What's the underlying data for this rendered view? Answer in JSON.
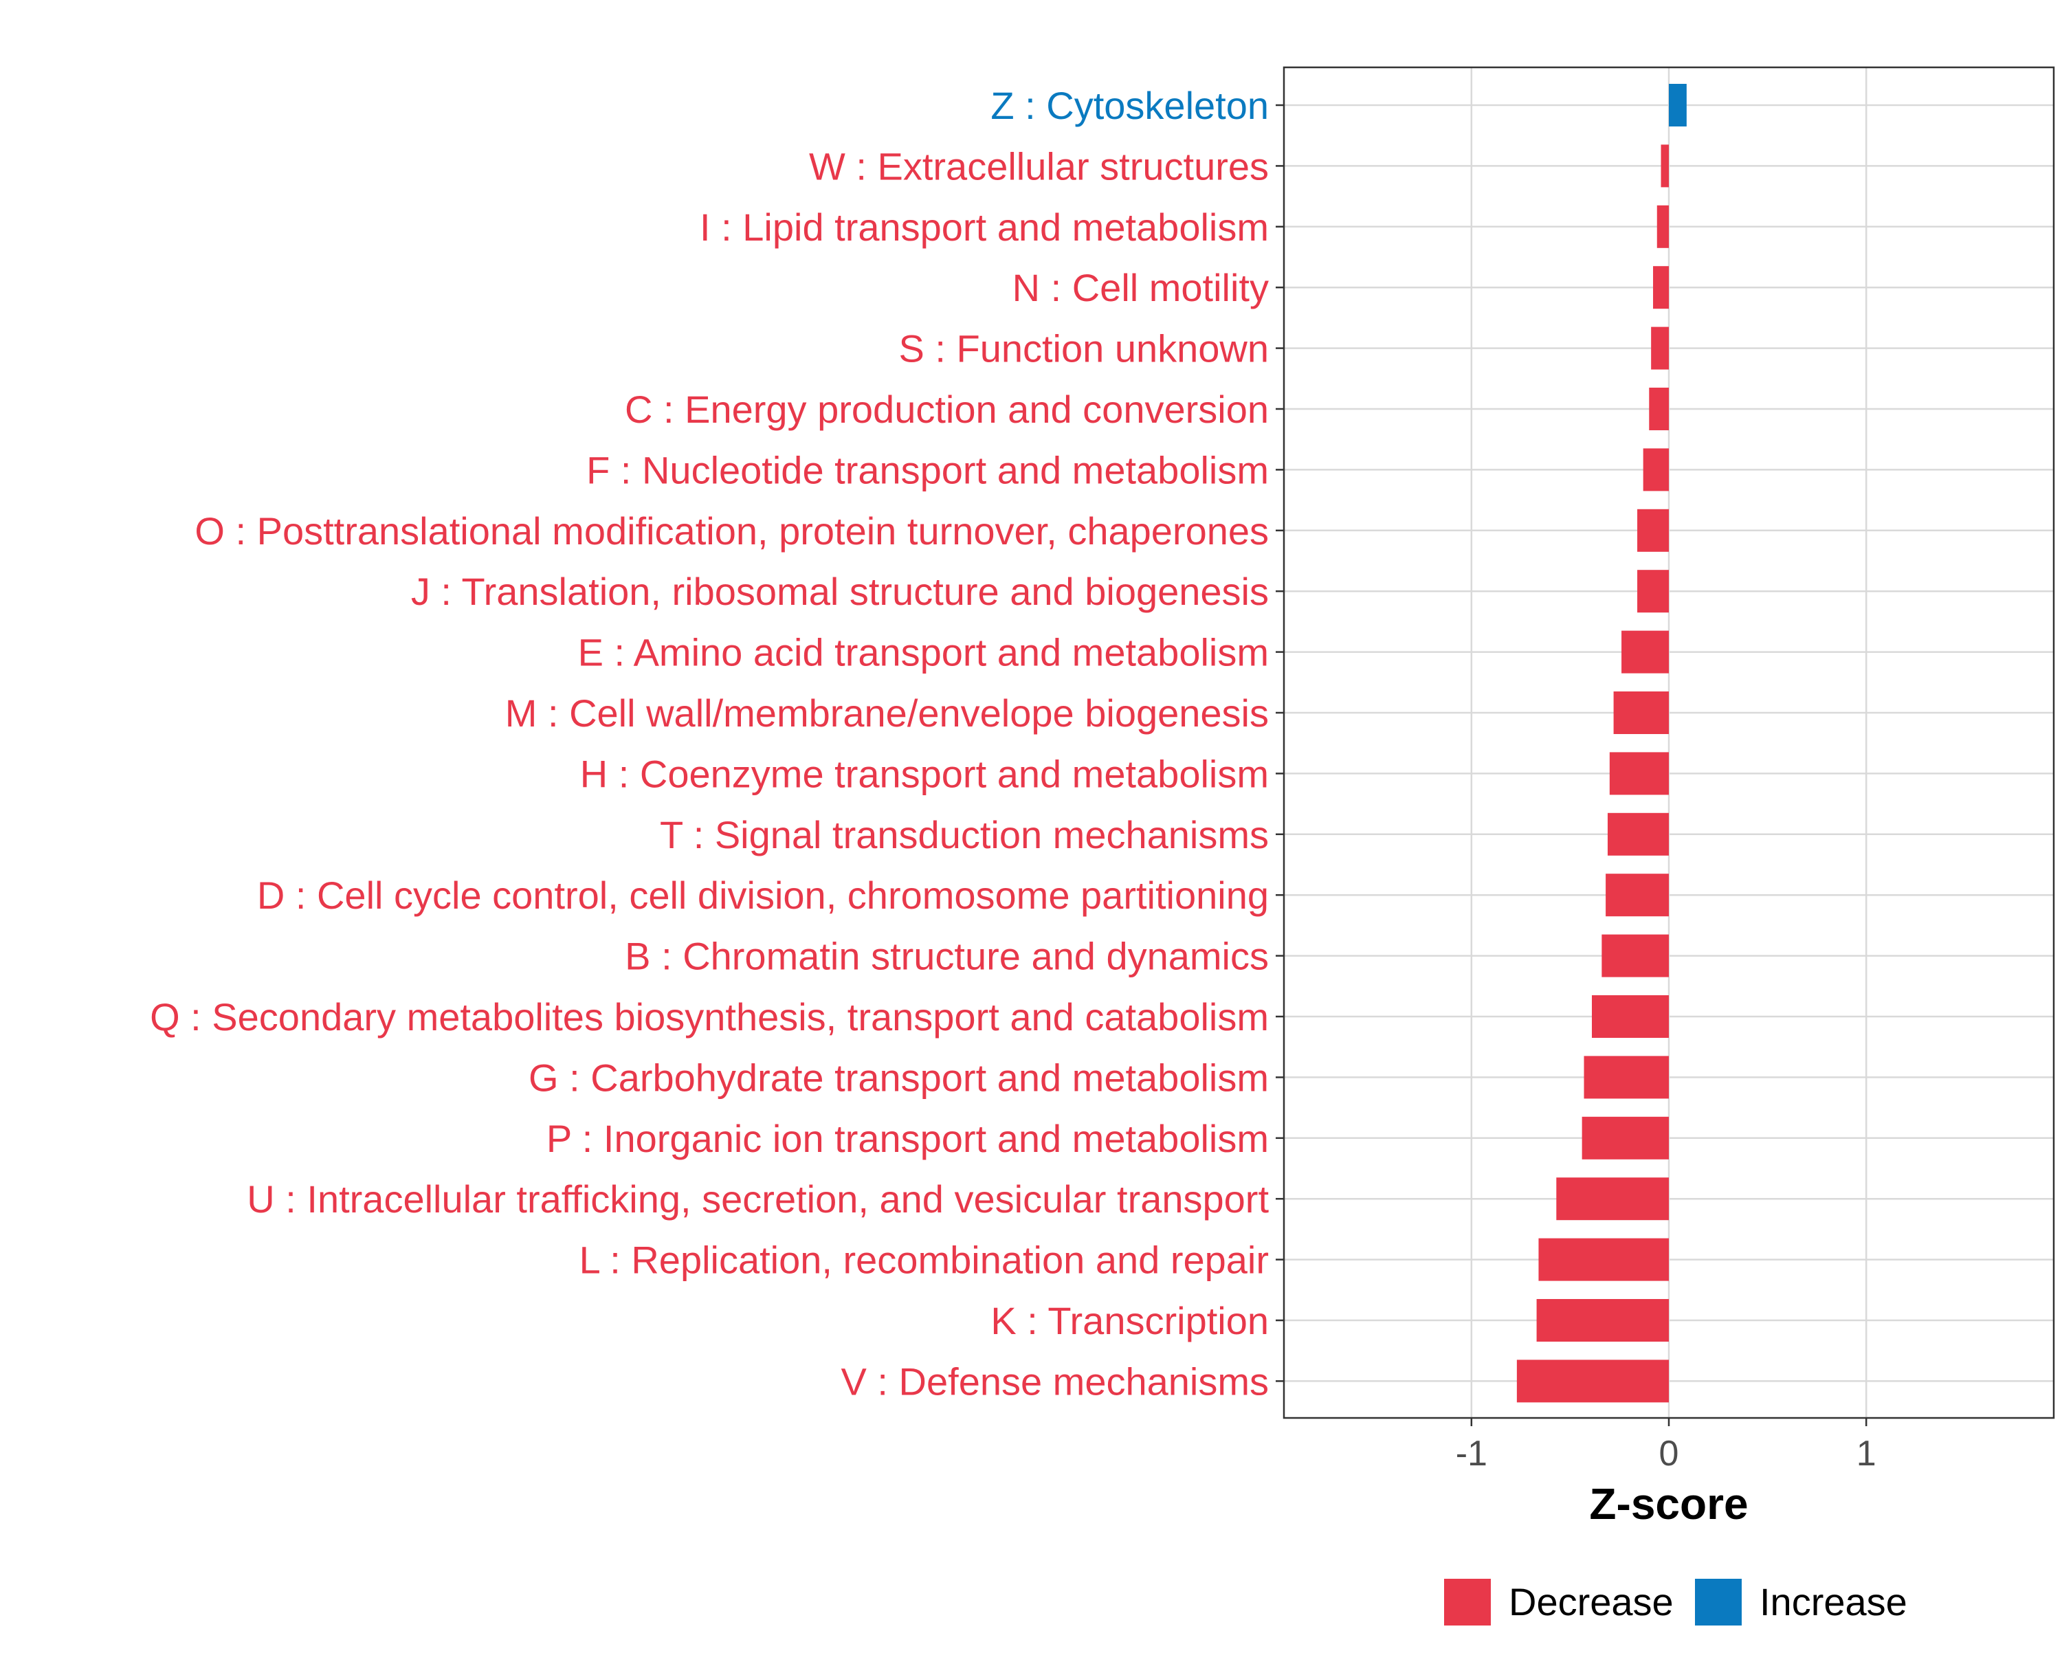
{
  "chart_data": {
    "type": "bar",
    "orientation": "horizontal",
    "categories": [
      "Z : Cytoskeleton",
      "W : Extracellular structures",
      "I : Lipid transport and metabolism",
      "N : Cell motility",
      "S : Function unknown",
      "C : Energy production and conversion",
      "F : Nucleotide transport and metabolism",
      "O : Posttranslational modification, protein turnover, chaperones",
      "J : Translation, ribosomal structure and biogenesis",
      "E : Amino acid transport and metabolism",
      "M : Cell wall/membrane/envelope biogenesis",
      "H : Coenzyme transport and metabolism",
      "T : Signal transduction mechanisms",
      "D : Cell cycle control, cell division, chromosome partitioning",
      "B : Chromatin structure and dynamics",
      "Q : Secondary metabolites biosynthesis, transport and catabolism",
      "G : Carbohydrate transport and metabolism",
      "P : Inorganic ion transport and metabolism",
      "U : Intracellular trafficking, secretion, and vesicular transport",
      "L : Replication, recombination and repair",
      "K : Transcription",
      "V : Defense mechanisms"
    ],
    "values": [
      0.09,
      -0.04,
      -0.06,
      -0.08,
      -0.09,
      -0.1,
      -0.13,
      -0.16,
      -0.16,
      -0.24,
      -0.28,
      -0.3,
      -0.31,
      -0.32,
      -0.34,
      -0.39,
      -0.43,
      -0.44,
      -0.57,
      -0.66,
      -0.67,
      -0.77
    ],
    "groups": [
      "Increase",
      "Decrease",
      "Decrease",
      "Decrease",
      "Decrease",
      "Decrease",
      "Decrease",
      "Decrease",
      "Decrease",
      "Decrease",
      "Decrease",
      "Decrease",
      "Decrease",
      "Decrease",
      "Decrease",
      "Decrease",
      "Decrease",
      "Decrease",
      "Decrease",
      "Decrease",
      "Decrease",
      "Decrease"
    ],
    "xlabel": "Z-score",
    "ylabel": "",
    "xlim": [
      -1.95,
      1.95
    ],
    "xticks": [
      -1,
      0,
      1
    ],
    "xtick_labels": [
      "-1",
      "0",
      "1"
    ],
    "grid": true,
    "legend": {
      "position": "bottom",
      "entries": [
        {
          "label": "Decrease",
          "color": "#e8384a"
        },
        {
          "label": "Increase",
          "color": "#0a7ac0"
        }
      ]
    },
    "colors": {
      "Decrease": "#e8384a",
      "Increase": "#0a7ac0"
    }
  }
}
